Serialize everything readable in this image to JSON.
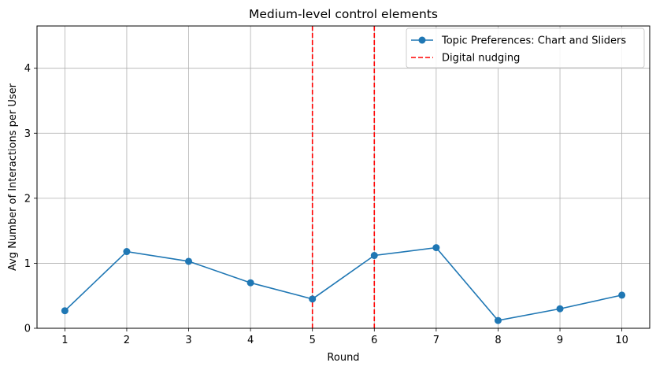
{
  "chart_data": {
    "type": "line",
    "title": "Medium-level control elements",
    "xlabel": "Round",
    "ylabel": "Avg Number of Interactions per User",
    "x": [
      1,
      2,
      3,
      4,
      5,
      6,
      7,
      8,
      9,
      10
    ],
    "xticks": [
      "1",
      "2",
      "3",
      "4",
      "5",
      "6",
      "7",
      "8",
      "9",
      "10"
    ],
    "yticks": [
      "0",
      "1",
      "2",
      "3",
      "4"
    ],
    "xlim": [
      0.55,
      10.45
    ],
    "ylim": [
      0,
      4.65
    ],
    "grid": true,
    "series": [
      {
        "name": "Topic Preferences: Chart and Sliders",
        "values": [
          0.27,
          1.18,
          1.03,
          0.7,
          0.45,
          1.12,
          1.24,
          0.12,
          0.3,
          0.51
        ],
        "color": "#1f77b4"
      }
    ],
    "vlines": [
      {
        "x": 5,
        "color": "#ff0000",
        "style": "dashed"
      },
      {
        "x": 6,
        "color": "#ff0000",
        "style": "dashed"
      }
    ],
    "legend": {
      "placement": "top-right",
      "entries": [
        "Topic Preferences: Chart and Sliders",
        "Digital nudging"
      ]
    }
  }
}
